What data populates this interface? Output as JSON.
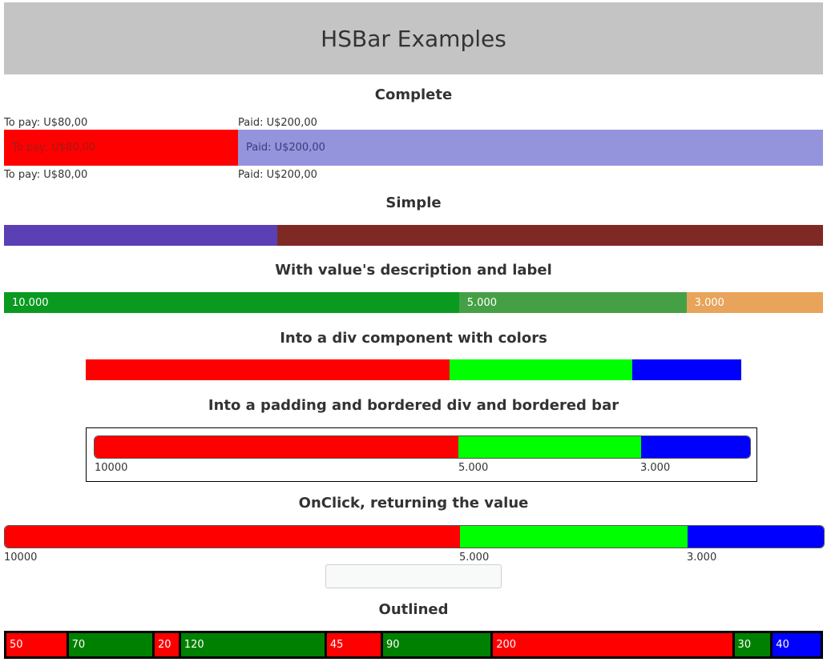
{
  "header": {
    "title": "HSBar Examples"
  },
  "complete": {
    "title": "Complete",
    "segments": [
      {
        "label": "To pay: U$80,00",
        "value": 80,
        "color": "#ff0000",
        "text_color": "#a01a1a"
      },
      {
        "label": "Paid: U$200,00",
        "value": 200,
        "color": "#9494dc",
        "text_color": "#3a3a7a"
      }
    ],
    "top_labels": [
      "To pay: U$80,00",
      "Paid: U$200,00"
    ],
    "bottom_labels": [
      "To pay: U$80,00",
      "Paid: U$200,00"
    ]
  },
  "simple": {
    "title": "Simple",
    "segments": [
      {
        "value": 1,
        "color": "#5a3fb5"
      },
      {
        "value": 2,
        "color": "#7e2924"
      }
    ]
  },
  "described": {
    "title": "With value's description and label",
    "segments": [
      {
        "label": "10.000",
        "value": 10000,
        "color": "#0a9a20"
      },
      {
        "label": "5.000",
        "value": 5000,
        "color": "#45a045"
      },
      {
        "label": "3.000",
        "value": 3000,
        "color": "#e8a45a"
      }
    ]
  },
  "colors_div": {
    "title": "Into a div component with colors",
    "segments": [
      {
        "value": 10000,
        "color": "#ff0000"
      },
      {
        "value": 5000,
        "color": "#00ff00"
      },
      {
        "value": 3000,
        "color": "#0000ff"
      }
    ]
  },
  "bordered": {
    "title": "Into a padding and bordered div and bordered bar",
    "segments": [
      {
        "value": 10000,
        "color": "#ff0000"
      },
      {
        "value": 5000,
        "color": "#00ff00"
      },
      {
        "value": 3000,
        "color": "#0000ff"
      }
    ],
    "bottom_labels": [
      "10000",
      "5.000",
      "3.000"
    ]
  },
  "onclick": {
    "title": "OnClick, returning the value",
    "segments": [
      {
        "value": 10000,
        "color": "#ff0000"
      },
      {
        "value": 5000,
        "color": "#00ff00"
      },
      {
        "value": 3000,
        "color": "#0000ff"
      }
    ],
    "bottom_labels": [
      "10000",
      "5.000",
      "3.000"
    ],
    "result_value": ""
  },
  "outlined": {
    "title": "Outlined",
    "segments": [
      {
        "label": "50",
        "value": 50,
        "color": "#ff0000"
      },
      {
        "label": "70",
        "value": 70,
        "color": "#008000"
      },
      {
        "label": "20",
        "value": 20,
        "color": "#ff0000"
      },
      {
        "label": "120",
        "value": 120,
        "color": "#008000"
      },
      {
        "label": "45",
        "value": 45,
        "color": "#ff0000"
      },
      {
        "label": "90",
        "value": 90,
        "color": "#008000"
      },
      {
        "label": "200",
        "value": 200,
        "color": "#ff0000"
      },
      {
        "label": "30",
        "value": 30,
        "color": "#008000"
      },
      {
        "label": "40",
        "value": 40,
        "color": "#0000ff"
      }
    ]
  }
}
